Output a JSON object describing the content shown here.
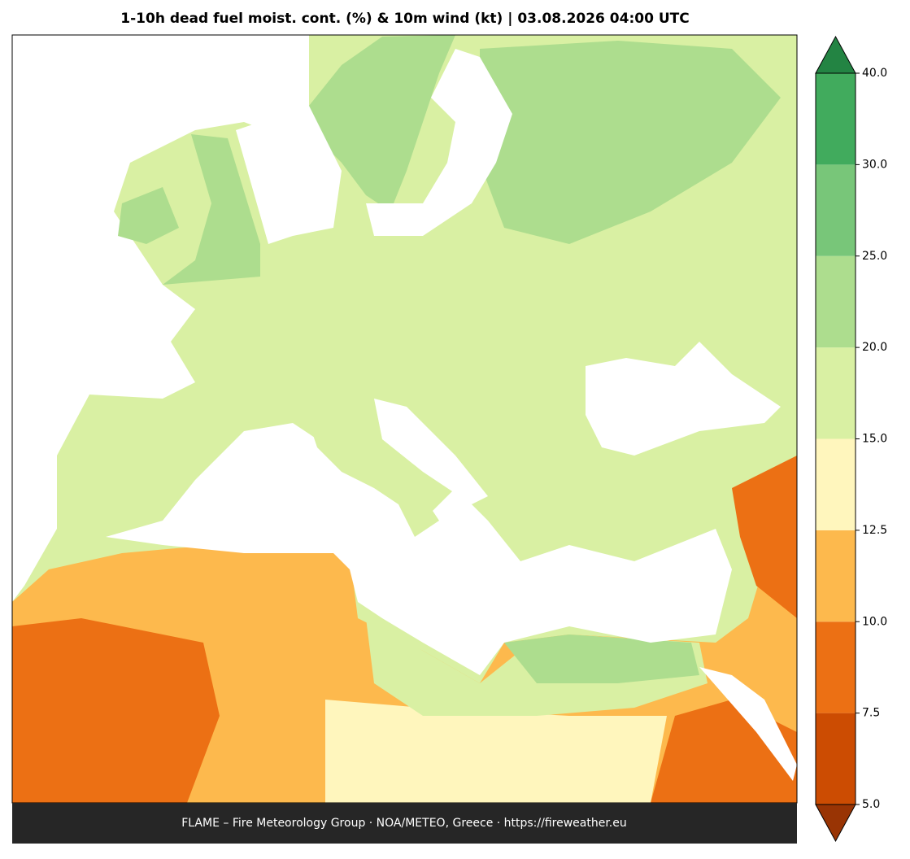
{
  "title": "1-10h dead fuel moist. cont. (%) & 10m wind (kt)  |  03.08.2026 04:00 UTC",
  "colorbar": {
    "levels": [
      {
        "value": 5,
        "label": "5.0"
      },
      7.5,
      {
        "value": 10,
        "label": "10.0"
      },
      12.5,
      {
        "value": 15,
        "label": "15.0"
      },
      {
        "value": 20,
        "label": "20.0"
      },
      {
        "value": 25,
        "label": "25.0"
      },
      {
        "value": 30,
        "label": "30.0"
      },
      {
        "value": 40,
        "label": "40.0"
      }
    ],
    "colors": [
      "#cc4c02",
      "#ec7014",
      "#fdb94d",
      "#fff6bd",
      "#d9f0a3",
      "#addd8e",
      "#78c679",
      "#41ab5d"
    ],
    "extend_min_color": "#993404",
    "extend_max_color": "#238443"
  },
  "footer": "FLAME – Fire Meteorology Group · NOA/METEO, Greece · https://fireweather.eu"
}
